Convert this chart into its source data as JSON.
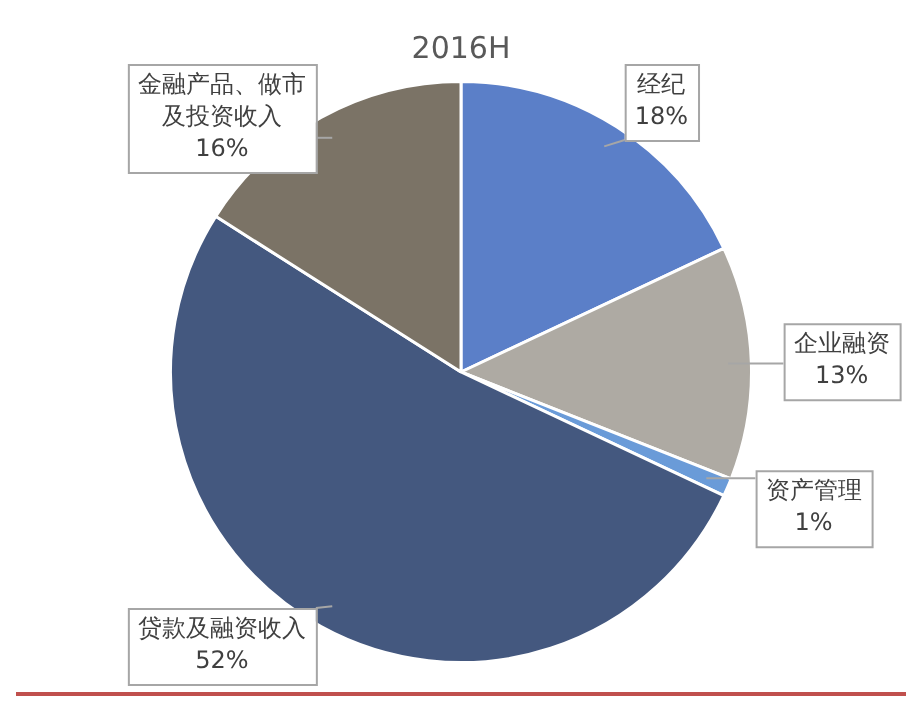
{
  "chart_data": {
    "type": "pie",
    "title": "2016H",
    "categories": [
      "经纪",
      "企业融资",
      "资产管理",
      "贷款及融资收入",
      "金融产品、做市及投资收入"
    ],
    "values": [
      18,
      13,
      1,
      52,
      16
    ],
    "colors": [
      "#5b7fc8",
      "#aeaaa3",
      "#6a9bd8",
      "#44587f",
      "#7b7366"
    ],
    "value_labels": [
      "18%",
      "13%",
      "1%",
      "52%",
      "16%"
    ],
    "legend": false
  }
}
